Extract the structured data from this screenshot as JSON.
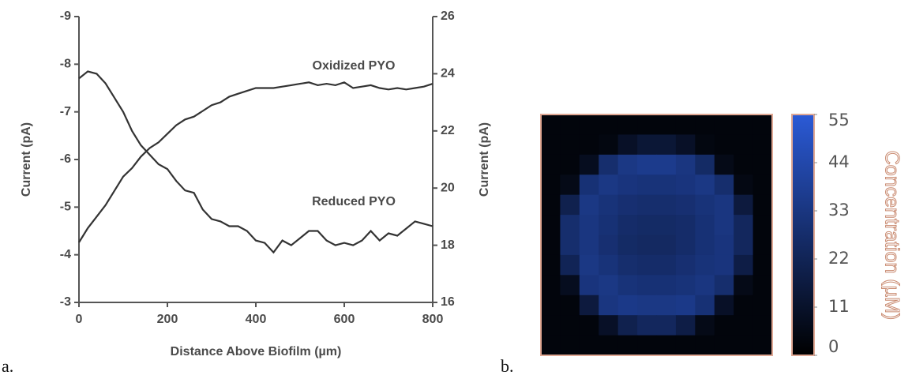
{
  "chart_data": [
    {
      "type": "line",
      "panel_label": "a.",
      "xlabel": "Distance Above Biofilm (µm)",
      "ylabel": "Current (pA)",
      "y2label": "Current (pA)",
      "xlim": [
        0,
        800
      ],
      "xticks": [
        0,
        200,
        400,
        600,
        800
      ],
      "ylim": [
        -3,
        -9
      ],
      "yticks": [
        -3,
        -4,
        -5,
        -6,
        -7,
        -8,
        -9
      ],
      "y2lim": [
        16,
        26
      ],
      "y2ticks": [
        16,
        18,
        20,
        22,
        24,
        26
      ],
      "annotations": [
        "Oxidized PYO",
        "Reduced PYO"
      ],
      "x": [
        0,
        20,
        40,
        60,
        80,
        100,
        120,
        140,
        160,
        180,
        200,
        220,
        240,
        260,
        280,
        300,
        320,
        340,
        360,
        380,
        400,
        420,
        440,
        460,
        480,
        500,
        520,
        540,
        560,
        580,
        600,
        620,
        640,
        660,
        680,
        700,
        720,
        740,
        760,
        780,
        800
      ],
      "series": [
        {
          "name": "Reduced PYO",
          "color": "#333333",
          "axis": "y",
          "values": [
            -7.7,
            -7.85,
            -7.8,
            -7.6,
            -7.3,
            -7.0,
            -6.6,
            -6.3,
            -6.1,
            -5.9,
            -5.8,
            -5.55,
            -5.35,
            -5.3,
            -4.95,
            -4.75,
            -4.7,
            -4.6,
            -4.6,
            -4.5,
            -4.3,
            -4.25,
            -4.05,
            -4.3,
            -4.2,
            -4.35,
            -4.5,
            -4.5,
            -4.3,
            -4.2,
            -4.25,
            -4.2,
            -4.3,
            -4.5,
            -4.3,
            -4.45,
            -4.4,
            -4.55,
            -4.7,
            -4.65,
            -4.6
          ]
        },
        {
          "name": "Oxidized PYO",
          "color": "#333333",
          "axis": "y2",
          "values": [
            18.1,
            18.6,
            19.0,
            19.4,
            19.9,
            20.4,
            20.7,
            21.1,
            21.4,
            21.6,
            21.9,
            22.2,
            22.4,
            22.5,
            22.7,
            22.9,
            23.0,
            23.2,
            23.3,
            23.4,
            23.5,
            23.5,
            23.5,
            23.55,
            23.6,
            23.65,
            23.7,
            23.6,
            23.65,
            23.6,
            23.7,
            23.5,
            23.55,
            23.6,
            23.5,
            23.45,
            23.5,
            23.45,
            23.5,
            23.55,
            23.65
          ]
        }
      ]
    },
    {
      "type": "heatmap",
      "panel_label": "b.",
      "colorbar_label": "Concentration (µM)",
      "zlim": [
        0,
        55
      ],
      "zticks": [
        0,
        11,
        22,
        33,
        44,
        55
      ],
      "colormap": [
        "#000000",
        "#2b5ad6"
      ],
      "values": [
        [
          3,
          3,
          3,
          3,
          3,
          3,
          3,
          3,
          3,
          3,
          3,
          3
        ],
        [
          3,
          3,
          3,
          4,
          10,
          14,
          14,
          10,
          4,
          3,
          3,
          3
        ],
        [
          3,
          3,
          8,
          28,
          34,
          36,
          36,
          33,
          26,
          6,
          3,
          3
        ],
        [
          3,
          6,
          30,
          34,
          32,
          31,
          31,
          32,
          34,
          28,
          5,
          3
        ],
        [
          3,
          20,
          34,
          31,
          29,
          28,
          28,
          29,
          31,
          33,
          16,
          3
        ],
        [
          3,
          28,
          33,
          30,
          27,
          26,
          26,
          27,
          30,
          33,
          24,
          3
        ],
        [
          3,
          28,
          33,
          29,
          26,
          25,
          25,
          27,
          30,
          32,
          24,
          3
        ],
        [
          3,
          22,
          34,
          31,
          28,
          27,
          27,
          29,
          31,
          32,
          18,
          3
        ],
        [
          3,
          8,
          32,
          34,
          31,
          30,
          30,
          31,
          33,
          28,
          6,
          3
        ],
        [
          3,
          3,
          16,
          33,
          35,
          34,
          34,
          35,
          30,
          10,
          3,
          3
        ],
        [
          3,
          3,
          3,
          10,
          20,
          24,
          24,
          18,
          6,
          3,
          3,
          3
        ],
        [
          3,
          3,
          3,
          3,
          3,
          3,
          3,
          3,
          3,
          3,
          3,
          3
        ]
      ]
    }
  ]
}
